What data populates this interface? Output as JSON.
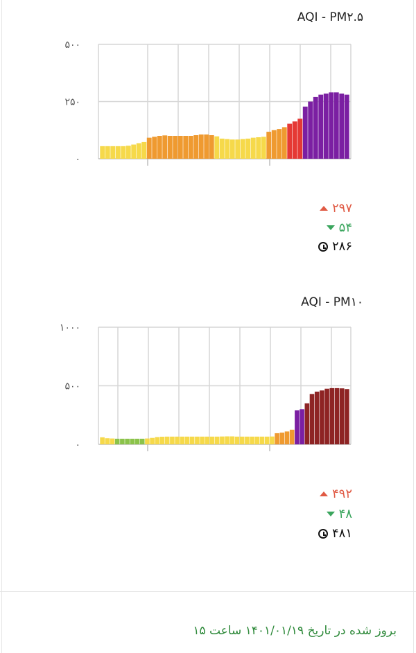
{
  "colors": {
    "good": "#8bc34a",
    "moderate": "#f6d94a",
    "usg": "#ef9a30",
    "unhealthy": "#e53935",
    "very_unhealthy": "#7b1fa2",
    "hazardous": "#8e2424",
    "max_stat": "#e05a44",
    "min_stat": "#3aa55d",
    "footer": "#2f8a3b"
  },
  "chart_data": [
    {
      "type": "bar",
      "title": "AQI - PM۲.۵",
      "ylim": [
        0,
        500
      ],
      "yticks": [
        0,
        250,
        500
      ],
      "ytick_labels": [
        "۰",
        "۲۵۰",
        "۵۰۰"
      ],
      "grid": true,
      "values": [
        55,
        55,
        55,
        55,
        55,
        57,
        62,
        68,
        73,
        92,
        96,
        100,
        102,
        100,
        100,
        100,
        100,
        100,
        103,
        106,
        106,
        103,
        98,
        88,
        86,
        84,
        84,
        86,
        88,
        92,
        94,
        96,
        118,
        125,
        130,
        138,
        153,
        163,
        175,
        228,
        250,
        270,
        280,
        285,
        290,
        290,
        285,
        280
      ],
      "stats": {
        "max": "۲۹۷",
        "min": "۵۴",
        "current": "۲۸۶"
      }
    },
    {
      "type": "bar",
      "title": "AQI - PM۱۰",
      "ylim": [
        0,
        1000
      ],
      "yticks": [
        0,
        500,
        1000
      ],
      "ytick_labels": [
        "۰",
        "۵۰۰",
        "۱۰۰۰"
      ],
      "grid": true,
      "values": [
        60,
        52,
        50,
        48,
        48,
        48,
        48,
        48,
        48,
        50,
        55,
        62,
        65,
        66,
        66,
        66,
        66,
        66,
        66,
        66,
        66,
        66,
        66,
        66,
        67,
        68,
        68,
        66,
        66,
        66,
        66,
        66,
        66,
        66,
        67,
        95,
        100,
        110,
        125,
        290,
        300,
        350,
        430,
        450,
        460,
        475,
        480,
        480,
        478,
        472
      ],
      "stats": {
        "max": "۴۹۲",
        "min": "۴۸",
        "current": "۴۸۱"
      }
    }
  ],
  "footer": {
    "updated_text": "بروز شده در تاریخ ۱۴۰۱/۰۱/۱۹ ساعت ۱۵"
  }
}
